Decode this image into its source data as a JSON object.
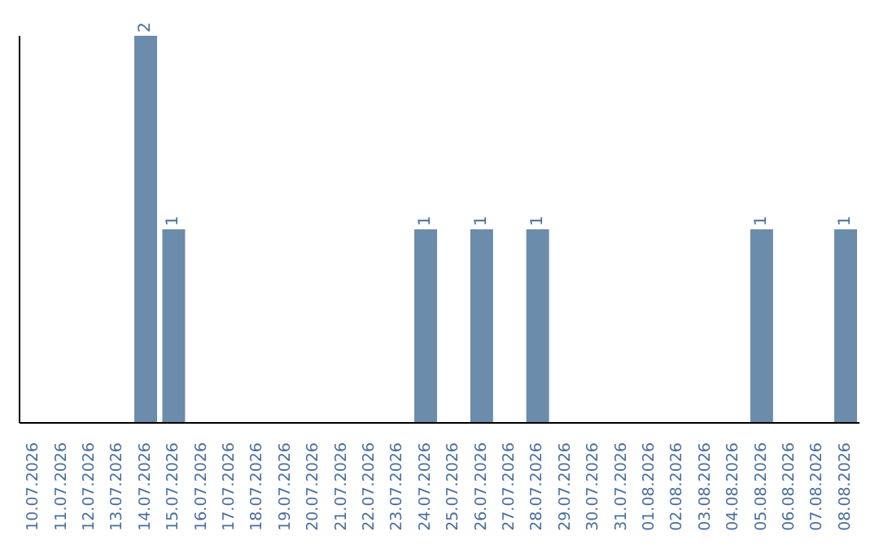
{
  "chart_data": {
    "type": "bar",
    "categories": [
      "10.07.2026",
      "11.07.2026",
      "12.07.2026",
      "13.07.2026",
      "14.07.2026",
      "15.07.2026",
      "16.07.2026",
      "17.07.2026",
      "18.07.2026",
      "19.07.2026",
      "20.07.2026",
      "21.07.2026",
      "22.07.2026",
      "23.07.2026",
      "24.07.2026",
      "25.07.2026",
      "26.07.2026",
      "27.07.2026",
      "28.07.2026",
      "29.07.2026",
      "30.07.2026",
      "31.07.2026",
      "01.08.2026",
      "02.08.2026",
      "03.08.2026",
      "04.08.2026",
      "05.08.2026",
      "06.08.2026",
      "07.08.2026",
      "08.08.2026"
    ],
    "values": [
      0,
      0,
      0,
      0,
      2,
      1,
      0,
      0,
      0,
      0,
      0,
      0,
      0,
      0,
      1,
      0,
      1,
      0,
      1,
      0,
      0,
      0,
      0,
      0,
      0,
      0,
      1,
      0,
      0,
      1
    ],
    "value_labels": [
      null,
      null,
      null,
      null,
      "2",
      "1",
      null,
      null,
      null,
      null,
      null,
      null,
      null,
      null,
      "1",
      null,
      "1",
      null,
      "1",
      null,
      null,
      null,
      null,
      null,
      null,
      null,
      "1",
      null,
      null,
      "1"
    ],
    "color": "#6b8cab",
    "tick_labels": "x"
  }
}
